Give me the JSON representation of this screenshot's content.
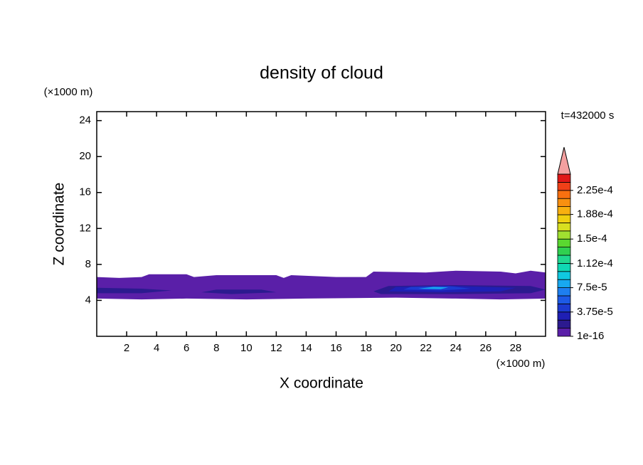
{
  "chart_data": {
    "type": "contour",
    "title": "density of cloud",
    "x_label": "X coordinate",
    "y_label": "Z coordinate",
    "x_unit": "(×1000 m)",
    "y_unit": "(×1000 m)",
    "annotation": "t=432000 s",
    "xlim": [
      0,
      30
    ],
    "xticks": [
      2,
      4,
      6,
      8,
      10,
      12,
      14,
      16,
      18,
      20,
      22,
      24,
      26,
      28
    ],
    "ylim": [
      0,
      25
    ],
    "yticks": [
      4,
      8,
      12,
      16,
      20,
      24
    ],
    "colorbar": {
      "clim": [
        1e-16,
        0.00025
      ],
      "colors": [
        "#5a1fa8",
        "#2c1a8f",
        "#1f1fb4",
        "#1c3ad0",
        "#1d5ae6",
        "#1e7ff0",
        "#18a8f0",
        "#10c8e0",
        "#10d8b4",
        "#20d890",
        "#30d050",
        "#5ad830",
        "#a0e030",
        "#d8e020",
        "#f0d010",
        "#f8b010",
        "#f89010",
        "#f87010",
        "#f04018",
        "#e01818"
      ],
      "extend_color": "#f4a0a0",
      "ticks": [
        1e-16,
        {
          "value": 3.75e-05,
          "label": "3.75e-5"
        },
        {
          "value": 7.5e-05,
          "label": "7.5e-5"
        },
        {
          "value": 0.000112,
          "label": "1.12e-4"
        },
        {
          "value": 0.00015,
          "label": "1.5e-4"
        },
        {
          "value": 0.000188,
          "label": "1.88e-4"
        },
        {
          "value": 0.000225,
          "label": "2.25e-4"
        }
      ]
    },
    "regions": [
      {
        "value": 6.25e-06,
        "points": [
          [
            0,
            4.2
          ],
          [
            0,
            6.6
          ],
          [
            1.5,
            6.5
          ],
          [
            3,
            6.6
          ],
          [
            3.5,
            6.9
          ],
          [
            6,
            6.9
          ],
          [
            6.5,
            6.6
          ],
          [
            8,
            6.8
          ],
          [
            12,
            6.8
          ],
          [
            12.5,
            6.5
          ],
          [
            13,
            6.8
          ],
          [
            16,
            6.6
          ],
          [
            18,
            6.6
          ],
          [
            18.5,
            7.2
          ],
          [
            22,
            7.1
          ],
          [
            24,
            7.3
          ],
          [
            27,
            7.2
          ],
          [
            28,
            7.0
          ],
          [
            29,
            7.3
          ],
          [
            30,
            7.1
          ],
          [
            30,
            4.2
          ],
          [
            27,
            4.1
          ],
          [
            24,
            4.2
          ],
          [
            20,
            4.3
          ],
          [
            14,
            4.2
          ],
          [
            10,
            4.1
          ],
          [
            6,
            4.2
          ],
          [
            3,
            4.1
          ]
        ]
      },
      {
        "value": 1.875e-05,
        "points": [
          [
            0,
            4.8
          ],
          [
            0,
            5.4
          ],
          [
            3,
            5.3
          ],
          [
            5,
            5.1
          ],
          [
            3,
            4.8
          ]
        ]
      },
      {
        "value": 1.875e-05,
        "points": [
          [
            7,
            4.9
          ],
          [
            8,
            5.2
          ],
          [
            11,
            5.2
          ],
          [
            12,
            4.9
          ],
          [
            9,
            4.7
          ]
        ]
      },
      {
        "value": 1.875e-05,
        "points": [
          [
            18.5,
            5.0
          ],
          [
            19.5,
            5.6
          ],
          [
            24,
            5.7
          ],
          [
            29,
            5.6
          ],
          [
            30,
            5.2
          ],
          [
            29,
            4.8
          ],
          [
            24,
            4.7
          ],
          [
            19,
            4.7
          ]
        ]
      },
      {
        "value": 3.125e-05,
        "points": [
          [
            19.5,
            5.0
          ],
          [
            20,
            5.5
          ],
          [
            24,
            5.6
          ],
          [
            28,
            5.4
          ],
          [
            27,
            5.0
          ],
          [
            23,
            4.9
          ]
        ]
      },
      {
        "value": 4.375e-05,
        "points": [
          [
            20.5,
            5.2
          ],
          [
            21,
            5.5
          ],
          [
            23.5,
            5.6
          ],
          [
            25,
            5.3
          ],
          [
            23,
            5.1
          ]
        ]
      },
      {
        "value": 8.125e-05,
        "points": [
          [
            21.5,
            5.3
          ],
          [
            22.5,
            5.5
          ],
          [
            23.5,
            5.45
          ],
          [
            23,
            5.25
          ]
        ]
      }
    ]
  }
}
